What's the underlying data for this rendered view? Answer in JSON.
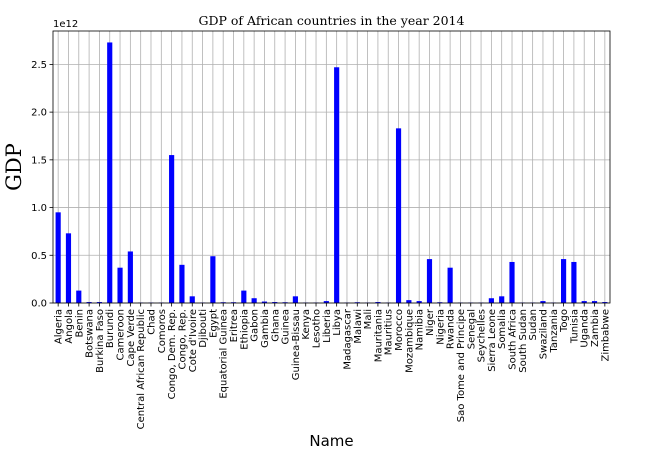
{
  "chart_data": {
    "type": "bar",
    "title": "GDP of African countries in the year 2014",
    "xlabel": "Name",
    "ylabel": "GDP",
    "y_offset_label": "1e12",
    "ylim": [
      0,
      2.85
    ],
    "yticks": [
      "0.0",
      "0.5",
      "1.0",
      "1.5",
      "2.0",
      "2.5"
    ],
    "y_unit_multiplier": 1000000000000.0,
    "grid": true,
    "legend": "none",
    "bar_color": "#0000ff",
    "categories": [
      "Algeria",
      "Angola",
      "Benin",
      "Botswana",
      "Burkina Faso",
      "Burundi",
      "Cameroon",
      "Cape Verde",
      "Central African Republic",
      "Chad",
      "Comoros",
      "Congo, Dem. Rep.",
      "Congo, Rep.",
      "Cote d'Ivoire",
      "Djibouti",
      "Egypt",
      "Equatorial Guinea",
      "Eritrea",
      "Ethiopia",
      "Gabon",
      "Gambia",
      "Ghana",
      "Guinea",
      "Guinea-Bissau",
      "Kenya",
      "Lesotho",
      "Liberia",
      "Libya",
      "Madagascar",
      "Malawi",
      "Mali",
      "Mauritania",
      "Mauritius",
      "Morocco",
      "Mozambique",
      "Namibia",
      "Niger",
      "Nigeria",
      "Rwanda",
      "Sao Tome and Principe",
      "Senegal",
      "Seychelles",
      "Sierra Leone",
      "Somalia",
      "South Africa",
      "South Sudan",
      "Sudan",
      "Swaziland",
      "Tanzania",
      "Togo",
      "Tunisia",
      "Uganda",
      "Zambia",
      "Zimbabwe"
    ],
    "values": [
      0.95,
      0.73,
      0.13,
      0.01,
      0.01,
      2.73,
      0.37,
      0.54,
      0.005,
      0.005,
      0.005,
      1.55,
      0.4,
      0.07,
      0.005,
      0.49,
      0.008,
      0.008,
      0.13,
      0.05,
      0.015,
      0.01,
      0.008,
      0.07,
      0.005,
      0.005,
      0.02,
      2.47,
      0.005,
      0.008,
      0.005,
      0.01,
      0.005,
      1.83,
      0.03,
      0.02,
      0.46,
      0.008,
      0.37,
      0.005,
      0.005,
      0.005,
      0.05,
      0.07,
      0.43,
      0.005,
      0.005,
      0.02,
      0.005,
      0.46,
      0.43,
      0.02,
      0.02,
      0.01
    ]
  }
}
